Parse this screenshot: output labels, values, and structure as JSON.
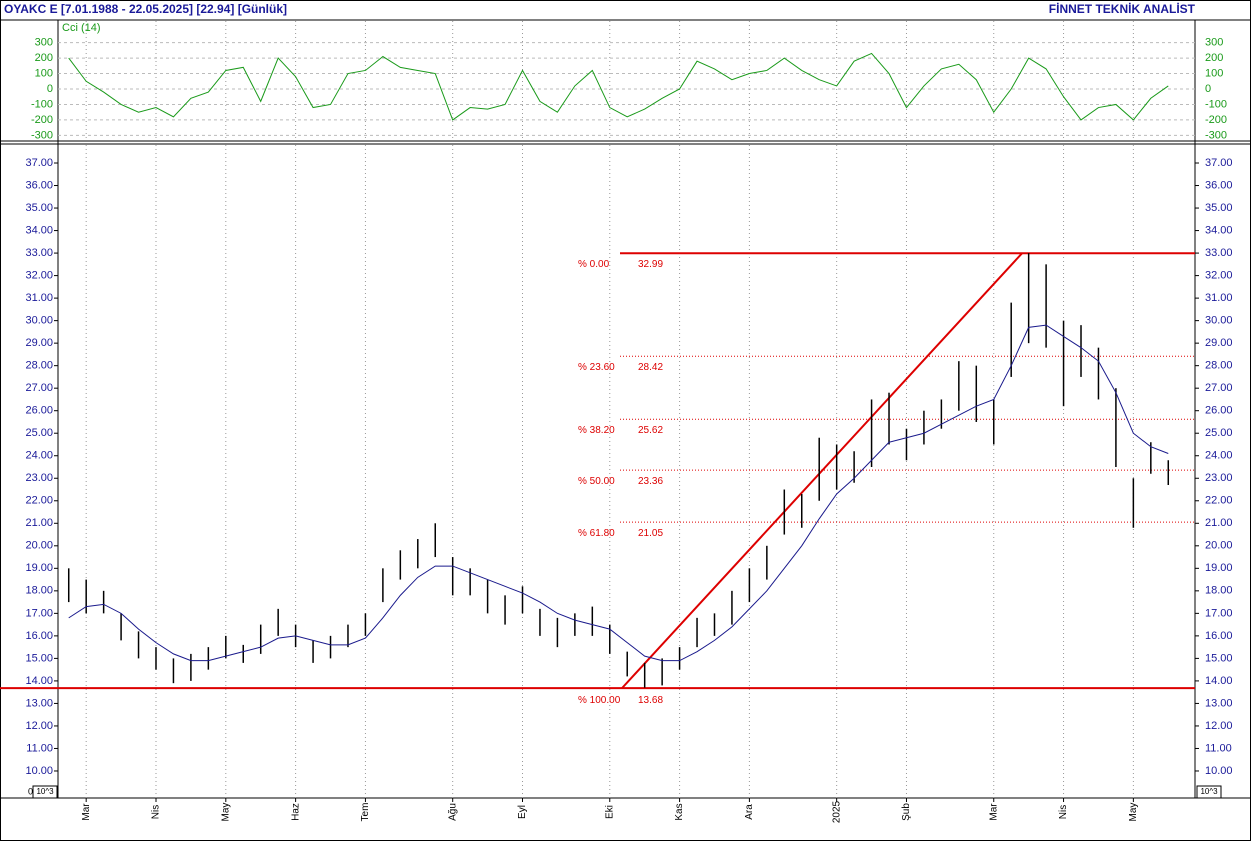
{
  "header": {
    "left": "OYAKC E  [7.01.1988 - 22.05.2025]  [22.94]  [Günlük]",
    "right": "FİNNET TEKNİK ANALİST",
    "scale_left": "10^3",
    "scale_right": "10^3",
    "zero": "0"
  },
  "chart_data": {
    "type": "range",
    "categories": [
      null,
      "Mar",
      null,
      null,
      null,
      "Nis",
      null,
      null,
      null,
      "May",
      null,
      null,
      null,
      "Haz",
      null,
      null,
      null,
      "Tem",
      null,
      null,
      null,
      null,
      "Ağu",
      null,
      null,
      null,
      "Eyl",
      null,
      null,
      null,
      null,
      "Eki",
      null,
      null,
      null,
      "Kas",
      null,
      null,
      null,
      "Ara",
      null,
      null,
      null,
      null,
      "2025",
      null,
      null,
      null,
      "Şub",
      null,
      null,
      null,
      null,
      "Mar",
      null,
      null,
      null,
      "Nis",
      null,
      null,
      null,
      "May",
      null,
      null
    ],
    "high": [
      19.0,
      18.5,
      18.0,
      17.0,
      16.2,
      15.5,
      15.0,
      15.2,
      15.5,
      16.0,
      15.6,
      16.5,
      17.2,
      16.5,
      15.8,
      16.0,
      16.5,
      17.0,
      19.0,
      19.8,
      20.3,
      21.0,
      19.5,
      19.0,
      18.5,
      17.8,
      18.2,
      17.2,
      16.8,
      17.0,
      17.3,
      16.5,
      15.3,
      14.8,
      15.0,
      15.5,
      16.8,
      17.0,
      18.0,
      19.0,
      20.0,
      22.5,
      22.3,
      24.8,
      24.5,
      24.2,
      26.5,
      26.8,
      25.2,
      26.0,
      26.5,
      28.2,
      28.0,
      26.5,
      30.8,
      33.0,
      32.5,
      30.0,
      29.8,
      28.8,
      27.0,
      23.0,
      24.6,
      23.8
    ],
    "low": [
      17.5,
      17.0,
      17.0,
      15.8,
      15.0,
      14.5,
      13.9,
      14.0,
      14.5,
      15.0,
      14.8,
      15.2,
      16.0,
      15.5,
      14.8,
      15.0,
      15.5,
      16.0,
      17.5,
      18.5,
      19.0,
      19.5,
      17.8,
      17.8,
      17.0,
      16.5,
      17.0,
      16.0,
      15.5,
      16.0,
      16.0,
      15.2,
      14.2,
      13.7,
      13.8,
      14.5,
      15.5,
      16.0,
      16.5,
      17.5,
      18.5,
      20.5,
      20.8,
      22.0,
      22.5,
      22.8,
      23.5,
      24.5,
      23.8,
      24.5,
      25.2,
      26.0,
      25.5,
      24.5,
      27.5,
      29.0,
      28.8,
      26.2,
      27.5,
      26.5,
      23.5,
      20.8,
      23.2,
      22.7
    ],
    "bar_color": "#000000",
    "ma": {
      "color": "#1a1a8c",
      "values": [
        16.8,
        17.3,
        17.4,
        17.0,
        16.3,
        15.7,
        15.2,
        14.9,
        14.9,
        15.1,
        15.3,
        15.5,
        15.9,
        16.0,
        15.8,
        15.6,
        15.6,
        15.9,
        16.8,
        17.8,
        18.6,
        19.1,
        19.1,
        18.8,
        18.5,
        18.2,
        17.9,
        17.5,
        17.0,
        16.7,
        16.5,
        16.3,
        15.7,
        15.1,
        14.9,
        14.9,
        15.3,
        15.8,
        16.4,
        17.2,
        18.0,
        19.0,
        20.0,
        21.2,
        22.3,
        23.0,
        23.8,
        24.6,
        24.8,
        25.0,
        25.4,
        25.8,
        26.2,
        26.5,
        28.0,
        29.7,
        29.8,
        29.3,
        28.8,
        28.2,
        26.8,
        25.0,
        24.4,
        24.1
      ]
    },
    "ylim": [
      8.8,
      37.8
    ],
    "yticks": [
      {
        "value": 10,
        "label": "10.00"
      },
      {
        "value": 11,
        "label": "11.00"
      },
      {
        "value": 12,
        "label": "12.00"
      },
      {
        "value": 13,
        "label": "13.00"
      },
      {
        "value": 14,
        "label": "14.00"
      },
      {
        "value": 15,
        "label": "15.00"
      },
      {
        "value": 16,
        "label": "16.00"
      },
      {
        "value": 17,
        "label": "17.00"
      },
      {
        "value": 18,
        "label": "18.00"
      },
      {
        "value": 19,
        "label": "19.00"
      },
      {
        "value": 20,
        "label": "20.00"
      },
      {
        "value": 21,
        "label": "21.00"
      },
      {
        "value": 22,
        "label": "22.00"
      },
      {
        "value": 23,
        "label": "23.00"
      },
      {
        "value": 24,
        "label": "24.00"
      },
      {
        "value": 25,
        "label": "25.00"
      },
      {
        "value": 26,
        "label": "26.00"
      },
      {
        "value": 27,
        "label": "27.00"
      },
      {
        "value": 28,
        "label": "28.00"
      },
      {
        "value": 29,
        "label": "29.00"
      },
      {
        "value": 30,
        "label": "30.00"
      },
      {
        "value": 31,
        "label": "31.00"
      },
      {
        "value": 32,
        "label": "32.00"
      },
      {
        "value": 33,
        "label": "33.00"
      },
      {
        "value": 34,
        "label": "34.00"
      },
      {
        "value": 35,
        "label": "35.00"
      },
      {
        "value": 36,
        "label": "36.00"
      },
      {
        "value": 37,
        "label": "37.00"
      }
    ],
    "fib_color": "#dd0000",
    "fib": [
      {
        "label": "% 0.00",
        "value": 32.99
      },
      {
        "label": "% 23.60",
        "value": 28.42
      },
      {
        "label": "% 38.20",
        "value": 25.62
      },
      {
        "label": "% 50.00",
        "value": 23.36
      },
      {
        "label": "% 61.80",
        "value": 21.05
      },
      {
        "label": "% 100.00",
        "value": 13.68
      }
    ],
    "cci": {
      "label": "Cci (14)",
      "color": "#1a9a1a",
      "ylim": [
        -330,
        440
      ],
      "yticks": [
        300,
        200,
        100,
        0,
        -100,
        -200,
        -300
      ],
      "values": [
        200,
        50,
        -20,
        -100,
        -150,
        -120,
        -180,
        -60,
        -20,
        120,
        140,
        -80,
        200,
        80,
        -120,
        -100,
        100,
        120,
        210,
        140,
        120,
        100,
        -200,
        -120,
        -130,
        -100,
        120,
        -80,
        -150,
        20,
        120,
        -120,
        -180,
        -130,
        -60,
        0,
        180,
        130,
        60,
        100,
        120,
        200,
        120,
        60,
        20,
        180,
        230,
        100,
        -120,
        20,
        130,
        160,
        60,
        -150,
        0,
        200,
        130,
        -50,
        -200,
        -120,
        -100,
        -200,
        -60,
        20
      ]
    }
  }
}
